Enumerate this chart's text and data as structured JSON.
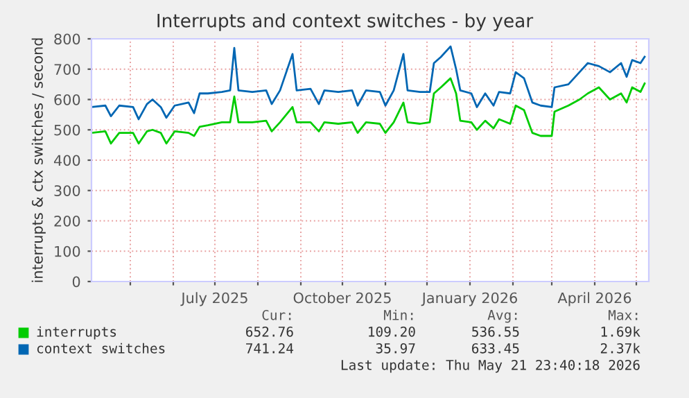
{
  "chart_data": {
    "type": "line",
    "title": "Interrupts and context switches - by year",
    "ylabel": "interrupts & ctx switches / second",
    "x": [
      "2025-04-03",
      "2025-04-13",
      "2025-04-17",
      "2025-04-23",
      "2025-05-03",
      "2025-05-07",
      "2025-05-13",
      "2025-05-17",
      "2025-05-23",
      "2025-05-27",
      "2025-06-02",
      "2025-06-12",
      "2025-06-16",
      "2025-06-20",
      "2025-06-26",
      "2025-07-06",
      "2025-07-12",
      "2025-07-15",
      "2025-07-18",
      "2025-07-28",
      "2025-08-07",
      "2025-08-11",
      "2025-08-17",
      "2025-08-26",
      "2025-08-29",
      "2025-09-08",
      "2025-09-14",
      "2025-09-18",
      "2025-09-28",
      "2025-10-08",
      "2025-10-12",
      "2025-10-18",
      "2025-10-28",
      "2025-11-01",
      "2025-11-07",
      "2025-11-14",
      "2025-11-17",
      "2025-11-26",
      "2025-12-03",
      "2025-12-06",
      "2025-12-11",
      "2025-12-18",
      "2025-12-22",
      "2025-12-25",
      "2026-01-02",
      "2026-01-06",
      "2026-01-12",
      "2026-01-18",
      "2026-01-22",
      "2026-01-30",
      "2026-02-03",
      "2026-02-09",
      "2026-02-15",
      "2026-02-21",
      "2026-03-01",
      "2026-03-03",
      "2026-03-13",
      "2026-03-21",
      "2026-03-27",
      "2026-04-04",
      "2026-04-12",
      "2026-04-20",
      "2026-04-24",
      "2026-04-28",
      "2026-05-04",
      "2026-05-07"
    ],
    "series": [
      {
        "name": "interrupts",
        "color": "#00cc00",
        "values": [
          490,
          495,
          455,
          490,
          490,
          455,
          495,
          500,
          490,
          455,
          495,
          490,
          480,
          510,
          515,
          525,
          525,
          610,
          525,
          525,
          530,
          495,
          525,
          575,
          525,
          525,
          495,
          525,
          520,
          525,
          490,
          525,
          520,
          490,
          525,
          590,
          525,
          520,
          525,
          620,
          640,
          670,
          620,
          530,
          525,
          500,
          530,
          505,
          535,
          520,
          580,
          565,
          490,
          480,
          480,
          560,
          580,
          600,
          620,
          640,
          600,
          620,
          590,
          640,
          625,
          653
        ]
      },
      {
        "name": "context switches",
        "color": "#0066b3",
        "values": [
          575,
          580,
          545,
          580,
          575,
          535,
          585,
          600,
          575,
          540,
          580,
          590,
          555,
          620,
          620,
          625,
          630,
          770,
          630,
          625,
          630,
          585,
          630,
          750,
          630,
          635,
          585,
          630,
          625,
          630,
          580,
          630,
          625,
          580,
          630,
          750,
          630,
          625,
          625,
          720,
          740,
          775,
          700,
          630,
          620,
          575,
          620,
          580,
          625,
          620,
          690,
          670,
          590,
          580,
          575,
          640,
          650,
          690,
          720,
          710,
          690,
          720,
          675,
          730,
          720,
          741
        ]
      }
    ],
    "xlim": [
      "2025-04-03",
      "2026-05-10"
    ],
    "xticks": [
      {
        "value": "2025-05-01",
        "label": null
      },
      {
        "value": "2025-06-01",
        "label": null
      },
      {
        "value": "2025-07-01",
        "label": "July 2025"
      },
      {
        "value": "2025-08-01",
        "label": null
      },
      {
        "value": "2025-09-01",
        "label": null
      },
      {
        "value": "2025-10-01",
        "label": "October 2025"
      },
      {
        "value": "2025-11-01",
        "label": null
      },
      {
        "value": "2025-12-01",
        "label": null
      },
      {
        "value": "2026-01-01",
        "label": "January 2026"
      },
      {
        "value": "2026-02-01",
        "label": null
      },
      {
        "value": "2026-03-01",
        "label": null
      },
      {
        "value": "2026-04-01",
        "label": "April 2026"
      },
      {
        "value": "2026-05-01",
        "label": null
      }
    ],
    "ylim": [
      0,
      800
    ],
    "yticks": [
      0,
      100,
      200,
      300,
      400,
      500,
      600,
      700,
      800
    ],
    "grid": true,
    "legend": "bottom",
    "annotations": [
      "Cur:",
      "Min:",
      "Avg:",
      "Max:",
      "652.76",
      "109.20",
      "536.55",
      "1.69k",
      "741.24",
      "35.97",
      "633.45",
      "2.37k",
      "Last update: Thu May 21 23:40:18 2026"
    ]
  }
}
